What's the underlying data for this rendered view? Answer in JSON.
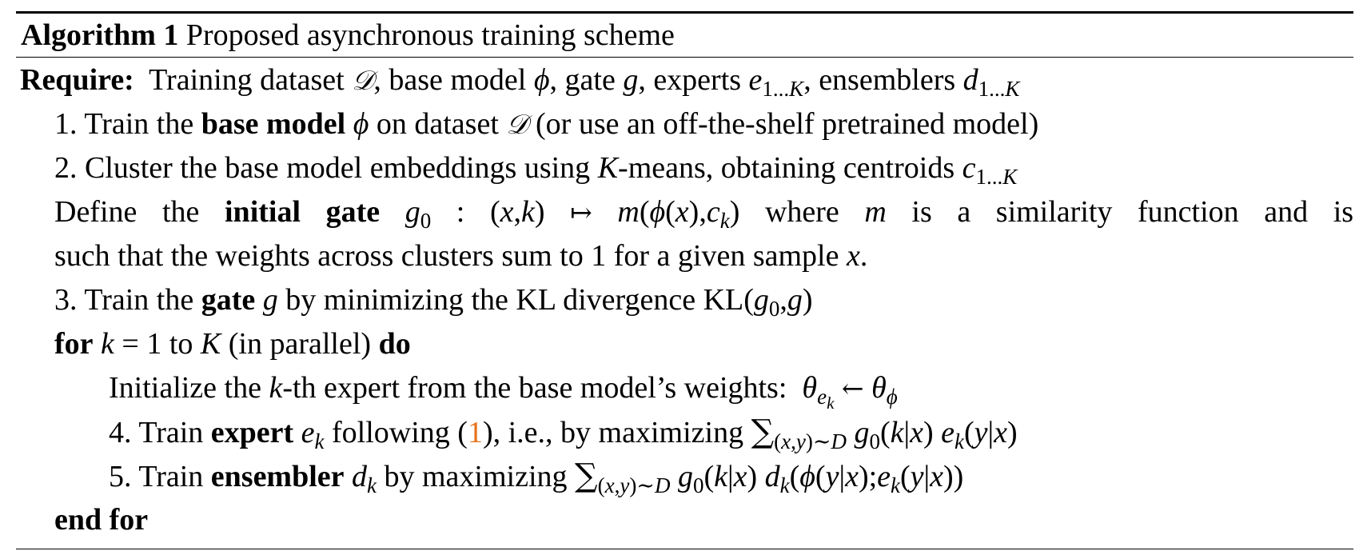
{
  "algorithm": {
    "label": "Algorithm 1",
    "title": "Proposed asynchronous training scheme",
    "require_label": "Require:",
    "require_text": "Training dataset 𝒟, base model ϕ, gate g, experts e1...K, ensemblers d1...K",
    "steps": {
      "s1_pre": "1. Train the",
      "s1_bold": "base model",
      "s1_post": "on dataset 𝒟 (or use an off-the-shelf pretrained model)",
      "s2": "2. Cluster the base model embeddings using K-means, obtaining centroids c1...K",
      "def_pre": "Define the",
      "def_bold": "initial gate",
      "def_post": "where m is a similarity function and is",
      "def_line2": "such that the weights across clusters sum to 1 for a given sample x.",
      "s3_pre": "3. Train the",
      "s3_bold": "gate",
      "s3_post": "by minimizing the KL divergence KL(g0, g)",
      "for_kw": "for",
      "for_cond": "k = 1 to K (in parallel)",
      "do_kw": "do",
      "init": "Initialize the k-th expert from the base model’s weights:",
      "s4_pre": "4. Train",
      "s4_bold": "expert",
      "s4_mid": "following (",
      "s4_cite": "1",
      "s4_post": "), i.e., by maximizing",
      "s5_pre": "5. Train",
      "s5_bold": "ensembler",
      "s5_post": "by maximizing",
      "endfor_kw": "end for"
    }
  }
}
